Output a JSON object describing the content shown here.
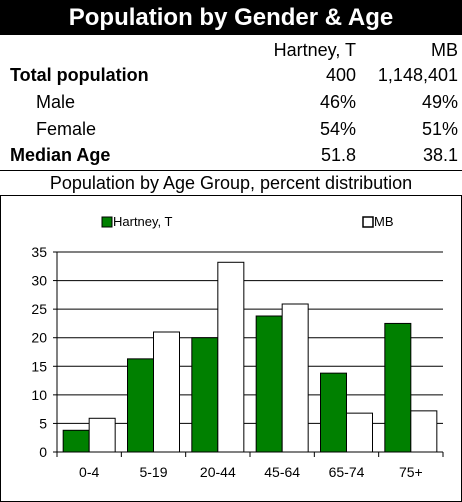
{
  "title": "Population by Gender & Age",
  "columns": [
    "Hartney, T",
    "MB"
  ],
  "rows": [
    {
      "label": "Total population",
      "a": "400",
      "b": "1,148,401",
      "bold": true
    },
    {
      "label": "Male",
      "a": "46%",
      "b": "49%",
      "bold": false
    },
    {
      "label": "Female",
      "a": "54%",
      "b": "51%",
      "bold": false
    },
    {
      "label": "Median Age",
      "a": "51.8",
      "b": "38.1",
      "bold": true
    }
  ],
  "subtitle": "Population by Age Group, percent distribution",
  "colors": {
    "hartney": "#008000",
    "mb": "#ffffff",
    "title_bg": "#000000"
  },
  "chart_data": {
    "type": "bar",
    "categories": [
      "0-4",
      "5-19",
      "20-44",
      "45-64",
      "65-74",
      "75+"
    ],
    "series": [
      {
        "name": "Hartney, T",
        "values": [
          3.8,
          16.3,
          20.0,
          23.8,
          13.8,
          22.5
        ]
      },
      {
        "name": "MB",
        "values": [
          5.9,
          21.0,
          33.2,
          25.9,
          6.8,
          7.2
        ]
      }
    ],
    "yticks": [
      "0",
      "5",
      "10",
      "15",
      "20",
      "25",
      "30",
      "35"
    ],
    "ylim": [
      0,
      35
    ],
    "legend": "top",
    "grid": true
  }
}
